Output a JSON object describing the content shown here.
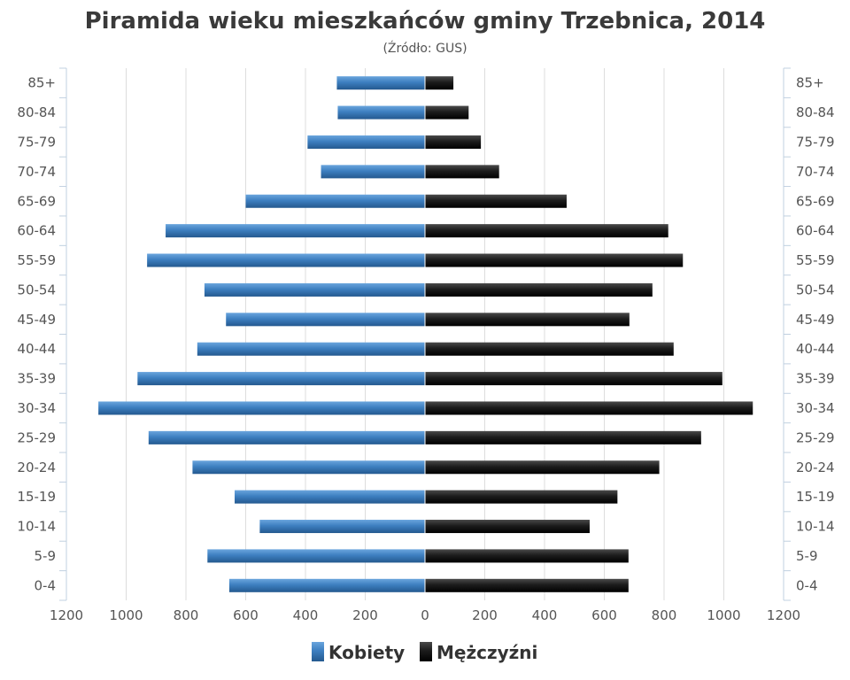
{
  "chart_data": {
    "type": "bar",
    "orientation": "horizontal-pyramid",
    "title": "Piramida wieku mieszkańców gminy Trzebnica, 2014",
    "subtitle": "(Źródło: GUS)",
    "categories": [
      "85+",
      "80-84",
      "75-79",
      "70-74",
      "65-69",
      "60-64",
      "55-59",
      "50-54",
      "45-49",
      "40-44",
      "35-39",
      "30-34",
      "25-29",
      "20-24",
      "15-19",
      "10-14",
      "5-9",
      "0-4"
    ],
    "xlim": [
      -1200,
      1200
    ],
    "xticks": [
      -1200,
      -1000,
      -800,
      -600,
      -400,
      -200,
      0,
      200,
      400,
      600,
      800,
      1000,
      1200
    ],
    "xtick_labels": [
      "1200",
      "1000",
      "800",
      "600",
      "400",
      "200",
      "0",
      "200",
      "400",
      "600",
      "800",
      "1000",
      "1200"
    ],
    "grid": true,
    "legend_position": "bottom",
    "series": [
      {
        "name": "Kobiety",
        "side": "left",
        "color": "#3d7fc0",
        "values": [
          295,
          292,
          393,
          348,
          600,
          868,
          930,
          738,
          666,
          762,
          962,
          1093,
          925,
          778,
          637,
          553,
          728,
          655
        ]
      },
      {
        "name": "Mężczyźni",
        "side": "right",
        "color": "#1e1e1e",
        "values": [
          95,
          146,
          187,
          248,
          474,
          814,
          863,
          761,
          684,
          832,
          995,
          1097,
          924,
          784,
          644,
          551,
          681,
          681
        ]
      }
    ]
  }
}
